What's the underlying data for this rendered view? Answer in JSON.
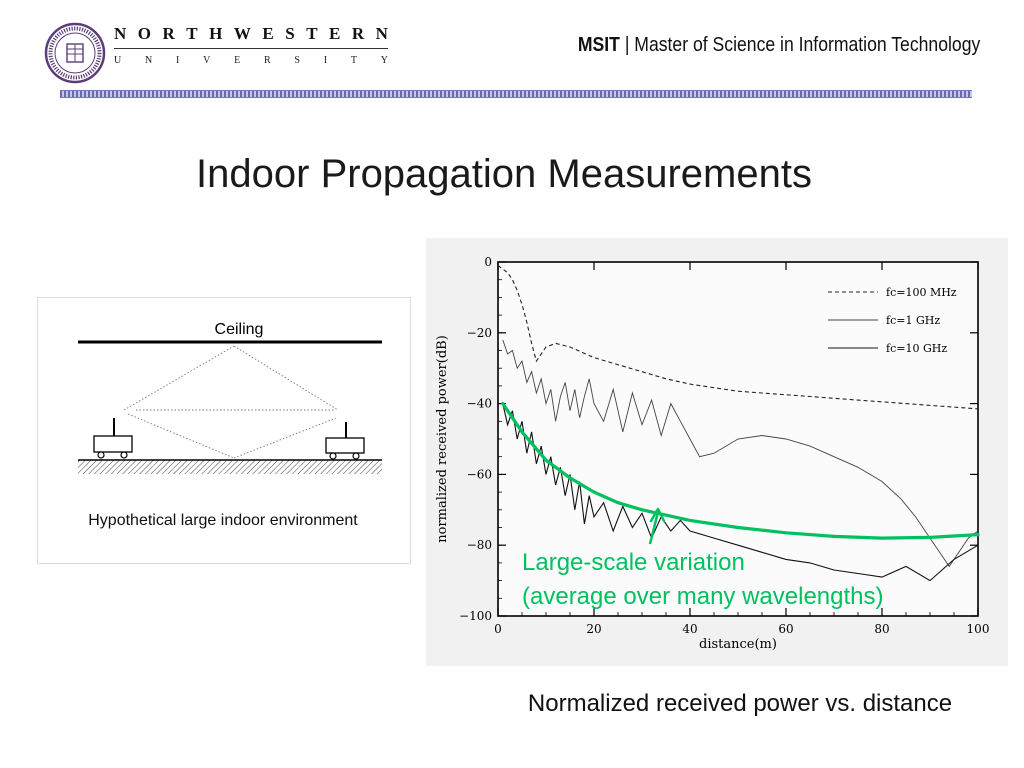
{
  "header": {
    "university": "NORTHWESTERN",
    "university_sub": "UNIVERSITY",
    "program_abbr": "MSIT",
    "program_sep": "|",
    "program_name": "Master of Science in Information Technology",
    "seal_text": "NORTHWESTERN UNIVERSITY",
    "seal_year": "1851"
  },
  "slide": {
    "title": "Indoor Propagation Measurements",
    "diagram_ceiling_label": "Ceiling",
    "diagram_caption": "Hypothetical large indoor environment",
    "plot_caption": "Normalized received power vs. distance",
    "annotation_line1": "Large-scale variation",
    "annotation_line2": "(average over many wavelengths)",
    "accent_color": "#00c060"
  },
  "chart_data": {
    "type": "line",
    "xlabel": "distance(m)",
    "ylabel": "normalized received power(dB)",
    "xlim": [
      0,
      100
    ],
    "ylim": [
      -100,
      0
    ],
    "xticks": [
      0,
      20,
      40,
      60,
      80,
      100
    ],
    "yticks": [
      0,
      -20,
      -40,
      -60,
      -80,
      -100
    ],
    "grid": false,
    "legend_position": "top-right",
    "series": [
      {
        "name": "fc=100 MHz",
        "style": "dashed",
        "x": [
          0,
          1,
          2,
          3,
          4,
          5,
          6,
          7,
          8,
          9,
          10,
          12,
          15,
          20,
          25,
          30,
          35,
          40,
          45,
          50,
          55,
          60,
          65,
          70,
          75,
          80,
          85,
          90,
          95,
          100
        ],
        "y": [
          -1,
          -2,
          -3,
          -5,
          -8,
          -12,
          -17,
          -23,
          -28,
          -26,
          -24,
          -23,
          -24,
          -27,
          -29,
          -31,
          -33,
          -34.5,
          -35.5,
          -36.5,
          -37,
          -37.5,
          -38,
          -38.5,
          -39,
          -39.5,
          -40,
          -40.5,
          -41,
          -41.5
        ]
      },
      {
        "name": "fc=1 GHz",
        "style": "thin",
        "x": [
          1,
          2,
          3,
          4,
          5,
          6,
          7,
          8,
          9,
          10,
          11,
          12,
          13,
          14,
          15,
          16,
          17,
          18,
          19,
          20,
          22,
          24,
          26,
          28,
          30,
          32,
          34,
          36,
          38,
          40,
          42,
          45,
          50,
          55,
          60,
          65,
          70,
          75,
          80,
          84,
          87,
          90,
          92,
          94,
          96,
          98,
          100
        ],
        "y": [
          -22,
          -26,
          -25,
          -30,
          -28,
          -34,
          -31,
          -37,
          -33,
          -40,
          -36,
          -45,
          -38,
          -34,
          -42,
          -36,
          -44,
          -38,
          -33,
          -40,
          -45,
          -36,
          -48,
          -37,
          -46,
          -39,
          -49,
          -40,
          -45,
          -50,
          -55,
          -54,
          -50,
          -49,
          -50,
          -52,
          -55,
          -58,
          -62,
          -67,
          -72,
          -78,
          -82,
          -86,
          -82,
          -78,
          -76
        ]
      },
      {
        "name": "fc=10 GHz",
        "style": "solid",
        "x": [
          1,
          2,
          3,
          4,
          5,
          6,
          7,
          8,
          9,
          10,
          11,
          12,
          13,
          14,
          15,
          16,
          17,
          18,
          19,
          20,
          22,
          24,
          26,
          28,
          30,
          32,
          34,
          36,
          38,
          40,
          45,
          50,
          55,
          60,
          65,
          70,
          75,
          80,
          85,
          90,
          95,
          100
        ],
        "y": [
          -40,
          -46,
          -42,
          -50,
          -45,
          -54,
          -48,
          -57,
          -52,
          -60,
          -55,
          -63,
          -58,
          -66,
          -60,
          -70,
          -62,
          -74,
          -66,
          -72,
          -68,
          -76,
          -69,
          -75,
          -71,
          -78,
          -72,
          -76,
          -73,
          -76,
          -78,
          -80,
          -82,
          -84,
          -85,
          -87,
          -88,
          -89,
          -86,
          -90,
          -84,
          -80
        ]
      },
      {
        "name": "Large-scale variation",
        "style": "accent",
        "x": [
          1,
          5,
          10,
          15,
          20,
          25,
          30,
          40,
          50,
          60,
          70,
          80,
          90,
          100
        ],
        "y": [
          -40,
          -48,
          -56,
          -61,
          -65,
          -68,
          -70,
          -73,
          -75,
          -76.5,
          -77.5,
          -78,
          -77.8,
          -77
        ]
      }
    ]
  }
}
